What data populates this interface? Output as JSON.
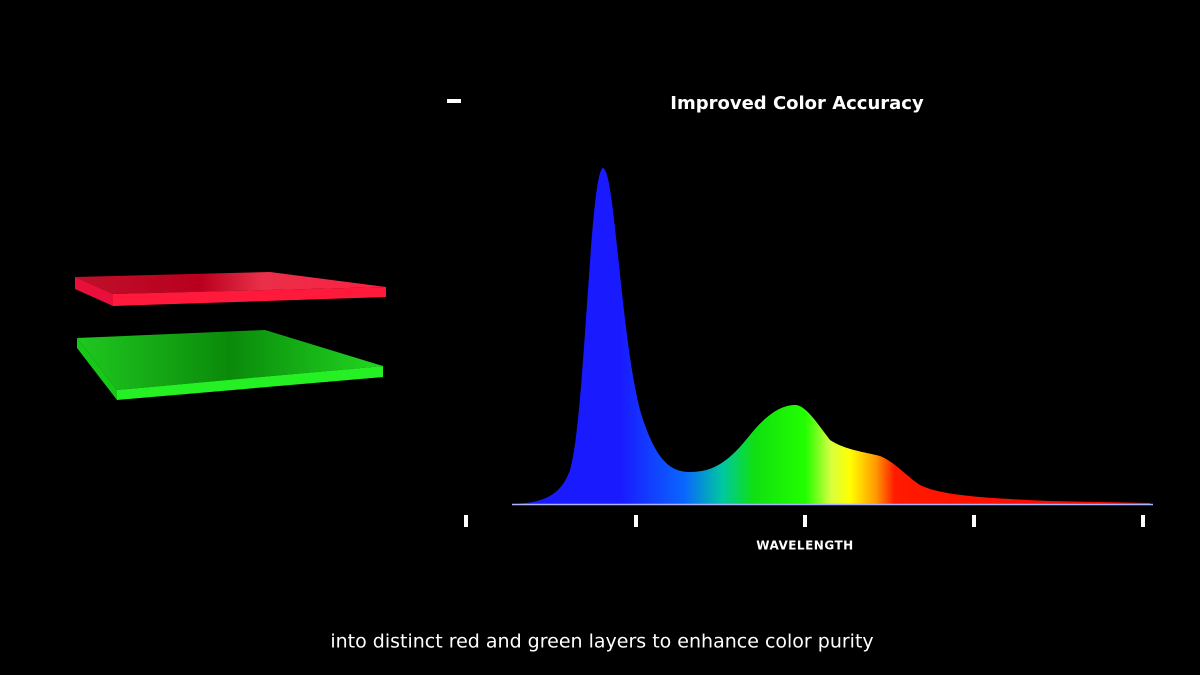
{
  "header": {
    "title": "Improved Color Accuracy"
  },
  "axis": {
    "label": "WAVELENGTH"
  },
  "caption": "into distinct red and green layers to enhance color purity"
}
